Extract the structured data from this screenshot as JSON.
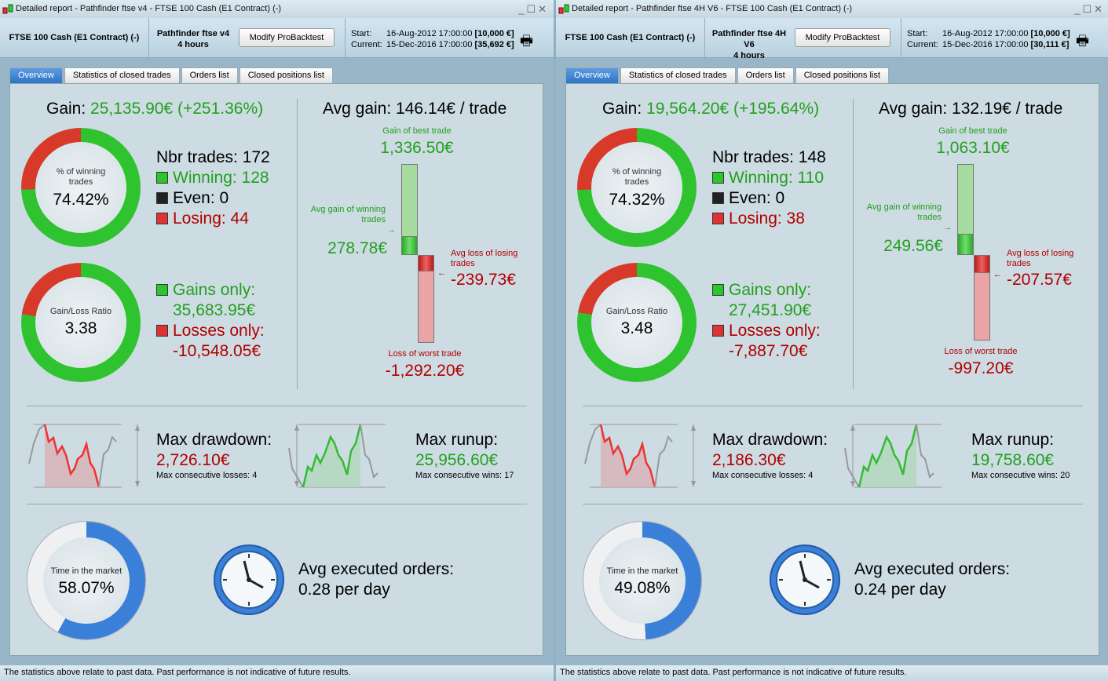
{
  "footer_text": "The statistics above relate to past data. Past performance is not indicative of future results.",
  "colors": {
    "gain": "#22a01e",
    "loss": "#b00000",
    "time_blue": "#3a7fd8"
  },
  "panels": [
    {
      "title": "Detailed report - Pathfinder ftse v4 - FTSE 100 Cash (E1 Contract) (-)",
      "instrument": "FTSE 100 Cash (E1 Contract) (-)",
      "strategy": "Pathfinder ftse v4",
      "timeframe": "4 hours",
      "modify_label": "Modify ProBacktest",
      "start_label": "Start:",
      "start_date": "16-Aug-2012 17:00:00",
      "start_capital": "[10,000 €]",
      "current_label": "Current:",
      "current_date": "15-Dec-2016 17:00:00",
      "current_capital": "[35,692 €]",
      "tabs": [
        "Overview",
        "Statistics of closed trades",
        "Orders list",
        "Closed positions list"
      ],
      "gain_label": "Gain:",
      "gain": "25,135.90€ (+251.36%)",
      "win_pct_label": "% of winning trades",
      "win_pct": "74.42%",
      "win_fraction": 0.7442,
      "nbr_trades": "Nbr trades: 172",
      "winning": "Winning: 128",
      "even": "Even: 0",
      "losing": "Losing: 44",
      "ratio_label": "Gain/Loss Ratio",
      "ratio": "3.38",
      "gains_fraction": 0.772,
      "gains_only_label": "Gains only:",
      "gains_only": "35,683.95€",
      "losses_only_label": "Losses only:",
      "losses_only": "-10,548.05€",
      "avg_gain": "Avg gain: 146.14€ / trade",
      "best_label": "Gain of best trade",
      "best": "1,336.50€",
      "best_value": 1336.5,
      "avg_win_label": "Avg gain of winning trades",
      "avg_win": "278.78€",
      "avg_win_value": 278.78,
      "avg_loss_label": "Avg loss of losing trades",
      "avg_loss": "-239.73€",
      "avg_loss_value": 239.73,
      "worst_label": "Loss of worst trade",
      "worst": "-1,292.20€",
      "worst_value": 1292.2,
      "dd_label": "Max drawdown:",
      "dd": "2,726.10€",
      "dd_sub": "Max consecutive losses: 4",
      "ru_label": "Max runup:",
      "ru": "25,956.60€",
      "ru_sub": "Max consecutive wins: 17",
      "time_label": "Time in the market",
      "time_pct": "58.07%",
      "time_fraction": 0.5807,
      "orders_label": "Avg executed orders:",
      "orders": "0.28 per day"
    },
    {
      "title": "Detailed report - Pathfinder ftse 4H V6 - FTSE 100 Cash (E1 Contract) (-)",
      "instrument": "FTSE 100 Cash (E1 Contract) (-)",
      "strategy": "Pathfinder ftse 4H V6",
      "timeframe": "4 hours",
      "modify_label": "Modify ProBacktest",
      "start_label": "Start:",
      "start_date": "16-Aug-2012 17:00:00",
      "start_capital": "[10,000 €]",
      "current_label": "Current:",
      "current_date": "15-Dec-2016 17:00:00",
      "current_capital": "[30,111 €]",
      "tabs": [
        "Overview",
        "Statistics of closed trades",
        "Orders list",
        "Closed positions list"
      ],
      "gain_label": "Gain:",
      "gain": "19,564.20€ (+195.64%)",
      "win_pct_label": "% of winning trades",
      "win_pct": "74.32%",
      "win_fraction": 0.7432,
      "nbr_trades": "Nbr trades: 148",
      "winning": "Winning: 110",
      "even": "Even: 0",
      "losing": "Losing: 38",
      "ratio_label": "Gain/Loss Ratio",
      "ratio": "3.48",
      "gains_fraction": 0.777,
      "gains_only_label": "Gains only:",
      "gains_only": "27,451.90€",
      "losses_only_label": "Losses only:",
      "losses_only": "-7,887.70€",
      "avg_gain": "Avg gain: 132.19€ / trade",
      "best_label": "Gain of best trade",
      "best": "1,063.10€",
      "best_value": 1063.1,
      "avg_win_label": "Avg gain of winning trades",
      "avg_win": "249.56€",
      "avg_win_value": 249.56,
      "avg_loss_label": "Avg loss of losing trades",
      "avg_loss": "-207.57€",
      "avg_loss_value": 207.57,
      "worst_label": "Loss of worst trade",
      "worst": "-997.20€",
      "worst_value": 997.2,
      "dd_label": "Max drawdown:",
      "dd": "2,186.30€",
      "dd_sub": "Max consecutive losses: 4",
      "ru_label": "Max runup:",
      "ru": "19,758.60€",
      "ru_sub": "Max consecutive wins: 20",
      "time_label": "Time in the market",
      "time_pct": "49.08%",
      "time_fraction": 0.4908,
      "orders_label": "Avg executed orders:",
      "orders": "0.24 per day"
    }
  ]
}
